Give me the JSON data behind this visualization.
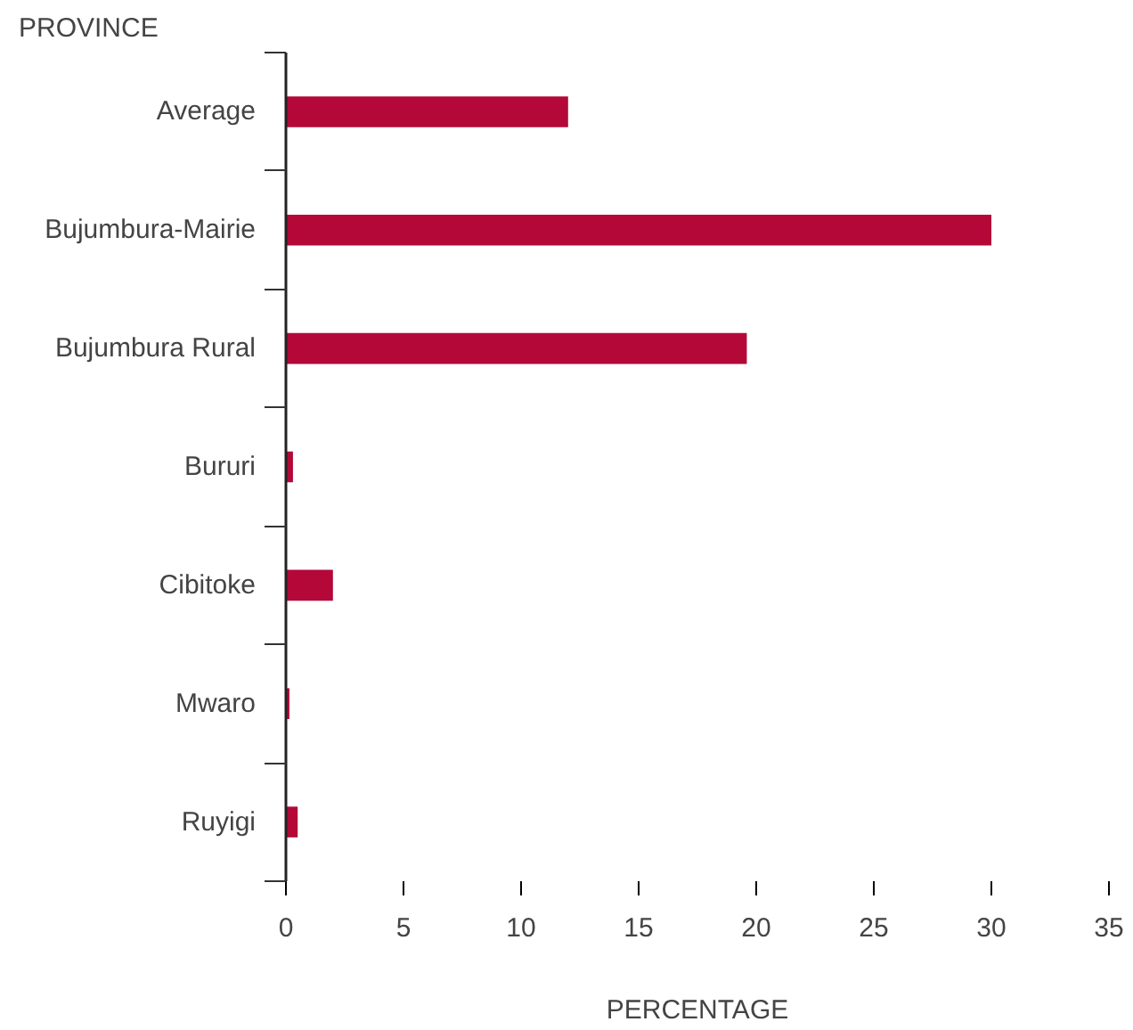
{
  "chart_data": {
    "type": "bar",
    "orientation": "horizontal",
    "ylabel": "PROVINCE",
    "xlabel": "PERCENTAGE",
    "categories": [
      "Average",
      "Bujumbura-Mairie",
      "Bujumbura Rural",
      "Bururi",
      "Cibitoke",
      "Mwaro",
      "Ruyigi"
    ],
    "values": [
      12.0,
      30.0,
      19.6,
      0.3,
      2.0,
      0.15,
      0.5
    ],
    "color": "#b30838",
    "xlim": [
      0,
      35
    ],
    "xticks": [
      0,
      5,
      10,
      15,
      20,
      25,
      30,
      35
    ],
    "grid": false
  }
}
